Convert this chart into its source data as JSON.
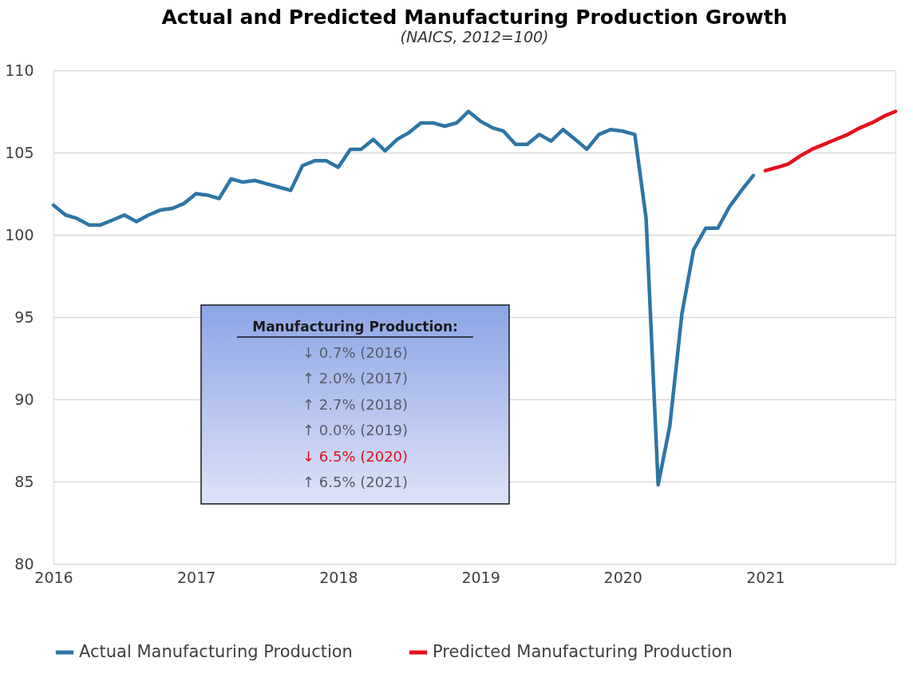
{
  "chart_data": {
    "type": "line",
    "title": "Actual and Predicted Manufacturing Production Growth",
    "subtitle": "(NAICS, 2012=100)",
    "annotations": [
      "Manufacturing  Production:",
      "↓ 0.7% (2016)",
      "↑ 2.0% (2017)",
      "↑ 2.7% (2018)",
      "↑ 0.0%  (2019)",
      "↓ 6.5% (2020)",
      "↑ 6.5% (2021)"
    ],
    "series": [
      {
        "name": "Actual Manufacturing Production",
        "color": "#2e75a6",
        "x": [
          "2016-01",
          "2016-02",
          "2016-03",
          "2016-04",
          "2016-05",
          "2016-06",
          "2016-07",
          "2016-08",
          "2016-09",
          "2016-10",
          "2016-11",
          "2016-12",
          "2017-01",
          "2017-02",
          "2017-03",
          "2017-04",
          "2017-05",
          "2017-06",
          "2017-07",
          "2017-08",
          "2017-09",
          "2017-10",
          "2017-11",
          "2017-12",
          "2018-01",
          "2018-02",
          "2018-03",
          "2018-04",
          "2018-05",
          "2018-06",
          "2018-07",
          "2018-08",
          "2018-09",
          "2018-10",
          "2018-11",
          "2018-12",
          "2019-01",
          "2019-02",
          "2019-03",
          "2019-04",
          "2019-05",
          "2019-06",
          "2019-07",
          "2019-08",
          "2019-09",
          "2019-10",
          "2019-11",
          "2019-12",
          "2020-01",
          "2020-02",
          "2020-03",
          "2020-04",
          "2020-05",
          "2020-06",
          "2020-07",
          "2020-08",
          "2020-09",
          "2020-10",
          "2020-11",
          "2020-12"
        ],
        "values": [
          101.8,
          101.2,
          101.0,
          100.6,
          100.6,
          100.9,
          101.2,
          100.8,
          101.2,
          101.5,
          101.6,
          101.9,
          102.5,
          102.4,
          102.2,
          103.4,
          103.2,
          103.3,
          103.1,
          102.9,
          102.7,
          104.2,
          104.5,
          104.5,
          104.1,
          105.2,
          105.2,
          105.8,
          105.1,
          105.8,
          106.2,
          106.8,
          106.8,
          106.6,
          106.8,
          107.5,
          106.9,
          106.5,
          106.3,
          105.5,
          105.5,
          106.1,
          105.7,
          106.4,
          105.8,
          105.2,
          106.1,
          106.4,
          106.3,
          106.1,
          101.0,
          84.8,
          88.4,
          95.2,
          99.1,
          100.4,
          100.4,
          101.7,
          102.7,
          103.6
        ]
      },
      {
        "name": "Predicted Manufacturing Production",
        "color": "#e3111b",
        "x": [
          "2021-01",
          "2021-02",
          "2021-03",
          "2021-04",
          "2021-05",
          "2021-06",
          "2021-07",
          "2021-08",
          "2021-09",
          "2021-10",
          "2021-11",
          "2021-12"
        ],
        "values": [
          103.9,
          104.1,
          104.3,
          104.8,
          105.2,
          105.5,
          105.8,
          106.1,
          106.5,
          106.8,
          107.2,
          107.5
        ]
      }
    ],
    "xlim": [
      "2016-01",
      "2021-12"
    ],
    "xticks": [
      "2016",
      "2017",
      "2018",
      "2019",
      "2020",
      "2021"
    ],
    "ylim": [
      80,
      110
    ],
    "yticks": [
      80,
      85,
      90,
      95,
      100,
      105,
      110
    ],
    "grid": "y",
    "legend": "bottom",
    "line_style": "solid"
  }
}
